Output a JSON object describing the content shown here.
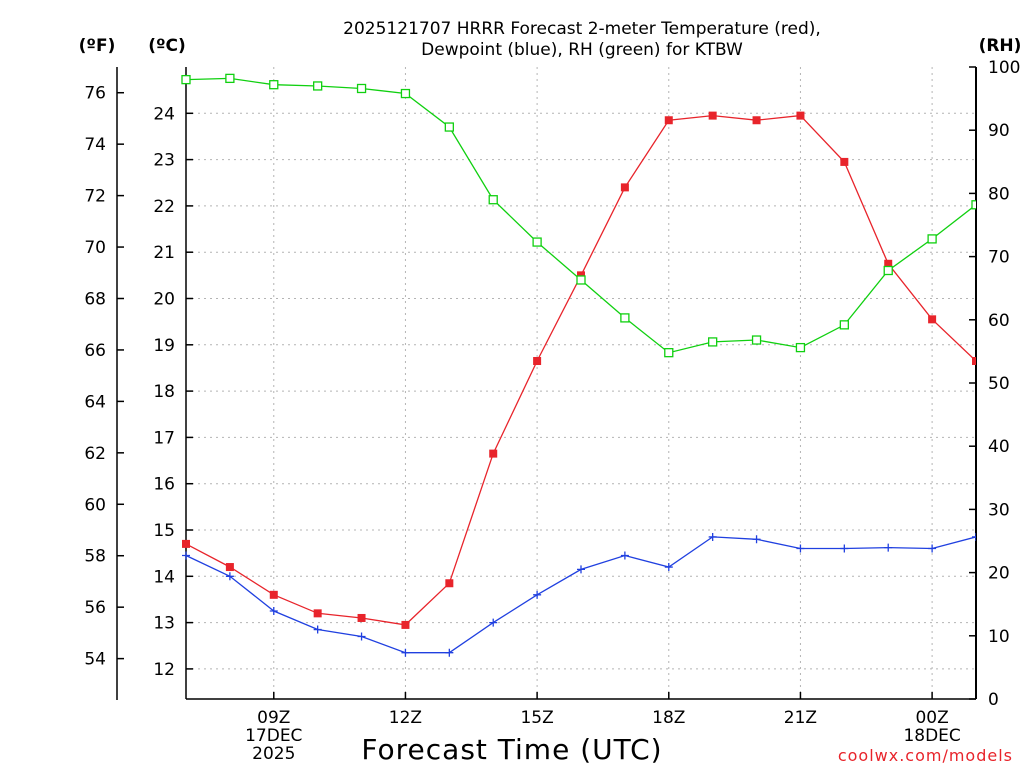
{
  "chart_data": {
    "type": "line",
    "title_line1": "2025121707 HRRR Forecast 2-meter Temperature (red),",
    "title_line2": "Dewpoint (blue), RH (green) for KTBW",
    "unit_f": "(ºF)",
    "unit_c": "(ºC)",
    "unit_rh": "(RH)",
    "xlabel": "Forecast Time (UTC)",
    "credit": "coolwx.com/models",
    "x_hours": [
      7,
      8,
      9,
      10,
      11,
      12,
      13,
      14,
      15,
      16,
      17,
      18,
      19,
      20,
      21,
      22,
      23,
      24,
      25
    ],
    "xlim": [
      7,
      25
    ],
    "ylim_c": [
      11.35,
      25.0
    ],
    "ylim_rh": [
      0,
      100
    ],
    "x_ticks": [
      {
        "hour": 9,
        "lines": [
          "09Z",
          "17DEC",
          "2025"
        ]
      },
      {
        "hour": 12,
        "lines": [
          "12Z"
        ]
      },
      {
        "hour": 15,
        "lines": [
          "15Z"
        ]
      },
      {
        "hour": 18,
        "lines": [
          "18Z"
        ]
      },
      {
        "hour": 21,
        "lines": [
          "21Z"
        ]
      },
      {
        "hour": 24,
        "lines": [
          "00Z",
          "18DEC"
        ]
      }
    ],
    "ticks_c": [
      12,
      13,
      14,
      15,
      16,
      17,
      18,
      19,
      20,
      21,
      22,
      23,
      24
    ],
    "ticks_f": [
      54,
      56,
      58,
      60,
      62,
      64,
      66,
      68,
      70,
      72,
      74,
      76
    ],
    "ticks_rh": [
      0,
      10,
      20,
      30,
      40,
      50,
      60,
      70,
      80,
      90,
      100
    ],
    "series": [
      {
        "name": "Temperature",
        "color": "#e8242b",
        "marker": "filled-square",
        "axis": "c",
        "values": [
          14.7,
          14.2,
          13.6,
          13.2,
          13.1,
          12.95,
          13.85,
          16.65,
          18.65,
          20.5,
          22.4,
          23.85,
          23.95,
          23.85,
          23.95,
          22.95,
          20.75,
          19.55,
          18.65
        ]
      },
      {
        "name": "Dewpoint",
        "color": "#2040e0",
        "marker": "plus",
        "axis": "c",
        "values": [
          14.45,
          14.0,
          13.25,
          12.85,
          12.7,
          12.35,
          12.35,
          13.0,
          13.6,
          14.15,
          14.45,
          14.2,
          14.85,
          14.8,
          14.6,
          14.6,
          14.62,
          14.6,
          14.85
        ]
      },
      {
        "name": "RH",
        "color": "#10d010",
        "marker": "open-square",
        "axis": "rh",
        "values": [
          98.0,
          98.2,
          97.2,
          97.0,
          96.6,
          95.8,
          90.5,
          79.0,
          72.3,
          66.3,
          60.3,
          54.8,
          56.5,
          56.8,
          55.6,
          59.2,
          67.8,
          72.8,
          78.2
        ]
      }
    ]
  }
}
